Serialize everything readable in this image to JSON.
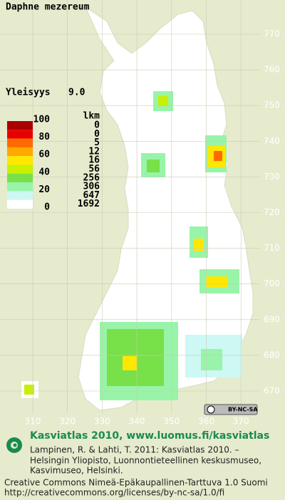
{
  "title": "Daphne mezereum",
  "frequency": {
    "label": "Yleisyys",
    "value": "9.0"
  },
  "legend": {
    "count_header": "lkm",
    "scale_labels": [
      100,
      80,
      60,
      40,
      20,
      0
    ],
    "classes": [
      {
        "color": "#a80000",
        "count": 0
      },
      {
        "color": "#e80000",
        "count": 0
      },
      {
        "color": "#ff6a00",
        "count": 5
      },
      {
        "color": "#ffa800",
        "count": 12
      },
      {
        "color": "#ffe800",
        "count": 16
      },
      {
        "color": "#c8f000",
        "count": 56
      },
      {
        "color": "#78e048",
        "count": 256
      },
      {
        "color": "#98f4a8",
        "count": 306
      },
      {
        "color": "#cdf8f4",
        "count": 647
      },
      {
        "color": "#ffffff",
        "count": 1692
      }
    ]
  },
  "grid": {
    "y_labels": [
      770,
      760,
      750,
      740,
      730,
      720,
      710,
      700,
      690,
      680,
      670
    ],
    "x_labels": [
      310,
      320,
      330,
      340,
      350,
      360,
      370
    ]
  },
  "license_badge": "BY-NC-SA",
  "footer": {
    "heading": "Kasviatlas 2010, www.luomus.fi/kasviatlas",
    "citation": [
      "Lampinen, R. & Lahti, T. 2011: Kasviatlas 2010. –",
      "Helsingin Yliopisto, Luonnontieteellinen keskusmuseo,",
      "Kasvimuseo, Helsinki."
    ],
    "license": [
      "Creative Commons Nimeä-Epäkaupallinen-Tarttuva 1.0 Suomi",
      "http://creativecommons.org/licenses/by-nc-sa/1.0/fi"
    ]
  }
}
